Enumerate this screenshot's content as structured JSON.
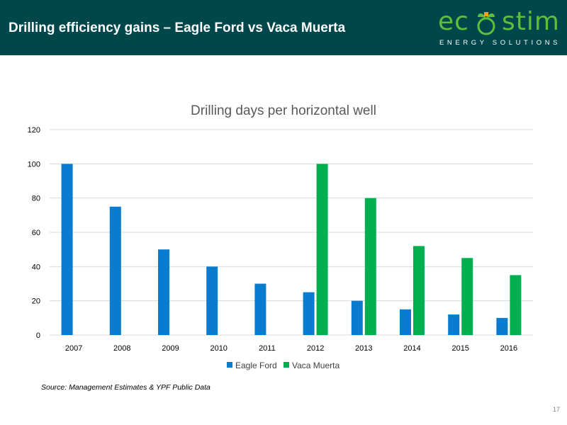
{
  "header": {
    "title": "Drilling efficiency gains – Eagle Ford vs Vaca Muerta"
  },
  "logo": {
    "word_left": "ec",
    "word_right": "stim",
    "tagline": "ENERGY SOLUTIONS",
    "color": "#5dbf3a"
  },
  "source_note": "Source: Management Estimates & YPF Public Data",
  "page_number": "17",
  "colors": {
    "header_bg": "#00474b",
    "eagle_ford": "#0a7ccf",
    "vaca_muerta": "#00b050"
  },
  "chart_data": {
    "type": "bar",
    "title": "Drilling days per horizontal well",
    "xlabel": "",
    "ylabel": "",
    "categories": [
      "2007",
      "2008",
      "2009",
      "2010",
      "2011",
      "2012",
      "2013",
      "2014",
      "2015",
      "2016"
    ],
    "series": [
      {
        "name": "Eagle Ford",
        "values": [
          100,
          75,
          50,
          40,
          30,
          25,
          20,
          15,
          12,
          10
        ]
      },
      {
        "name": "Vaca Muerta",
        "values": [
          null,
          null,
          null,
          null,
          null,
          100,
          80,
          52,
          45,
          35
        ]
      }
    ],
    "ylim": [
      0,
      120
    ],
    "yticks": [
      "0",
      "20",
      "40",
      "60",
      "80",
      "100",
      "120"
    ],
    "grid": true,
    "legend_position": "bottom"
  }
}
